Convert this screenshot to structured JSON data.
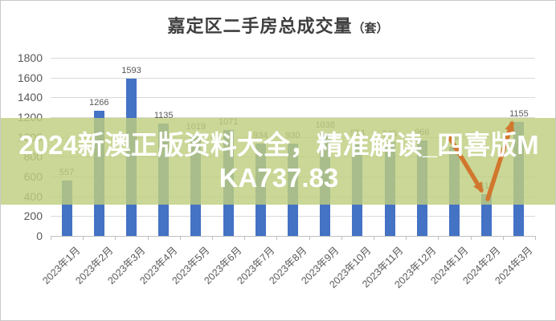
{
  "chart": {
    "title": "嘉定区二手房总成交量",
    "title_unit": "（套）"
  },
  "chart_data": {
    "type": "bar",
    "title": "嘉定区二手房总成交量（套）",
    "categories": [
      "2023年1月",
      "2023年2月",
      "2023年3月",
      "2023年4月",
      "2023年5月",
      "2023年6月",
      "2023年7月",
      "2023年8月",
      "2023年9月",
      "2023年10月",
      "2023年11月",
      "2023年12月",
      "2024年1月",
      "2024年2月",
      "2024年3月"
    ],
    "values": [
      557,
      1266,
      1593,
      1135,
      1019,
      1071,
      934,
      930,
      1038,
      954,
      945,
      966,
      904,
      418,
      1155
    ],
    "xlabel": "",
    "ylabel": "",
    "ylim": [
      0,
      1800
    ],
    "ytick_step": 200,
    "grid": true,
    "legend": false,
    "data_labels": true,
    "annotation": "orange V-shaped rebound arrow over 2024年1月-2024年3月 bars"
  },
  "watermark": {
    "line1": "2024新澳正版资料大全，精准解读_四喜版M",
    "line2": "KA737.83"
  },
  "colors": {
    "bar": "#4472C4",
    "banner_band": "rgba(190,206,127,0.82)",
    "banner_text": "#ffffff",
    "arrow": "#D2772E",
    "gridline": "#D9D9D9",
    "axis": "#BFBFBF",
    "tick_text": "#595959",
    "title_text": "#3F3F3F"
  }
}
